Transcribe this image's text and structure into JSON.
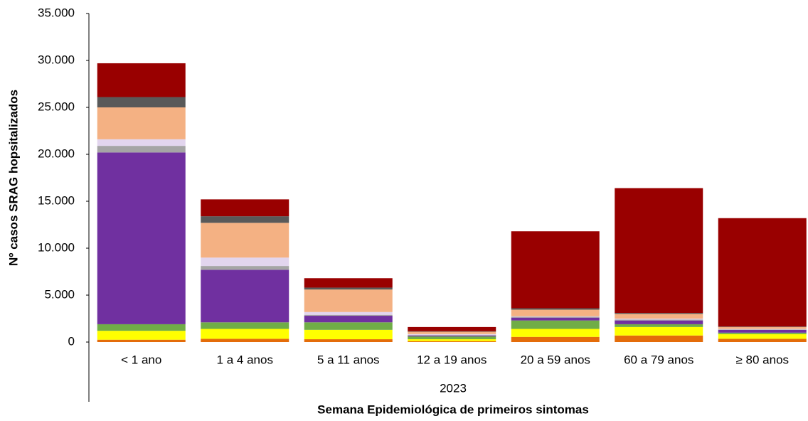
{
  "chart_data": {
    "type": "stacked_bar",
    "ylabel": "Nº casos SRAG hopsitalizados",
    "xlabel": "Semana Epidemiológica de primeiros sintomas",
    "group_label": "2023",
    "categories": [
      "< 1 ano",
      "1 a 4 anos",
      "5 a 11 anos",
      "12 a 19 anos",
      "20 a 59 anos",
      "60 a 79 anos",
      "≥ 80 anos"
    ],
    "series": [
      {
        "color": "#e46c0a",
        "values": [
          250,
          350,
          300,
          100,
          550,
          700,
          350
        ]
      },
      {
        "color": "#ffff00",
        "values": [
          950,
          1050,
          1000,
          200,
          850,
          900,
          500
        ]
      },
      {
        "color": "#70ad47",
        "values": [
          700,
          700,
          800,
          300,
          900,
          300,
          150
        ]
      },
      {
        "color": "#7030a0",
        "values": [
          18300,
          5600,
          700,
          100,
          300,
          400,
          300
        ]
      },
      {
        "color": "#a5a5a5",
        "values": [
          700,
          400,
          100,
          50,
          100,
          100,
          50
        ]
      },
      {
        "color": "#e2d5ee",
        "values": [
          700,
          900,
          300,
          100,
          50,
          100,
          50
        ]
      },
      {
        "color": "#f4b183",
        "values": [
          3400,
          3700,
          2400,
          250,
          700,
          500,
          200
        ]
      },
      {
        "color": "#595959",
        "values": [
          1100,
          700,
          200,
          50,
          150,
          100,
          50
        ]
      },
      {
        "color": "#990000",
        "values": [
          3600,
          1800,
          1000,
          450,
          8200,
          13300,
          11550
        ]
      }
    ],
    "ylim": [
      0,
      35000
    ],
    "yticks": [
      0,
      {
        "value": 5000,
        "label": "5.000"
      },
      {
        "value": 10000,
        "label": "10.000"
      },
      {
        "value": 15000,
        "label": "15.000"
      },
      {
        "value": 20000,
        "label": "20.000"
      },
      {
        "value": 25000,
        "label": "25.000"
      },
      {
        "value": 30000,
        "label": "30.000"
      },
      {
        "value": 35000,
        "label": "35.000"
      }
    ],
    "grid": false
  }
}
